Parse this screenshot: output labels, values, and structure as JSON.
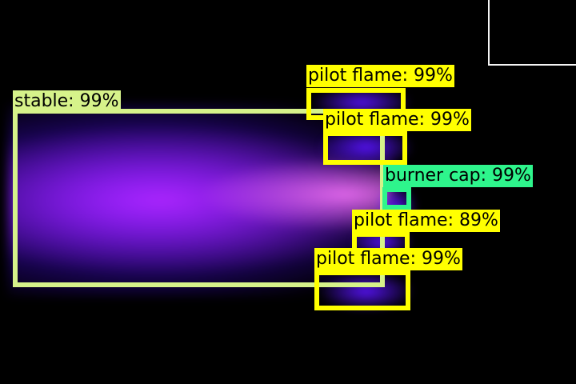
{
  "colors": {
    "stable": "#d6f28a",
    "pilot": "#ffff00",
    "burner": "#2ef58c"
  },
  "detections": [
    {
      "class": "stable",
      "confidence": 0.99,
      "label": "stable: 99%"
    },
    {
      "class": "pilot flame",
      "confidence": 0.99,
      "label": "pilot flame: 99%"
    },
    {
      "class": "pilot flame",
      "confidence": 0.99,
      "label": "pilot flame: 99%"
    },
    {
      "class": "burner cap",
      "confidence": 0.99,
      "label": "burner cap: 99%"
    },
    {
      "class": "pilot flame",
      "confidence": 0.89,
      "label": "pilot flame: 89%"
    },
    {
      "class": "pilot flame",
      "confidence": 0.99,
      "label": "pilot flame: 99%"
    }
  ]
}
